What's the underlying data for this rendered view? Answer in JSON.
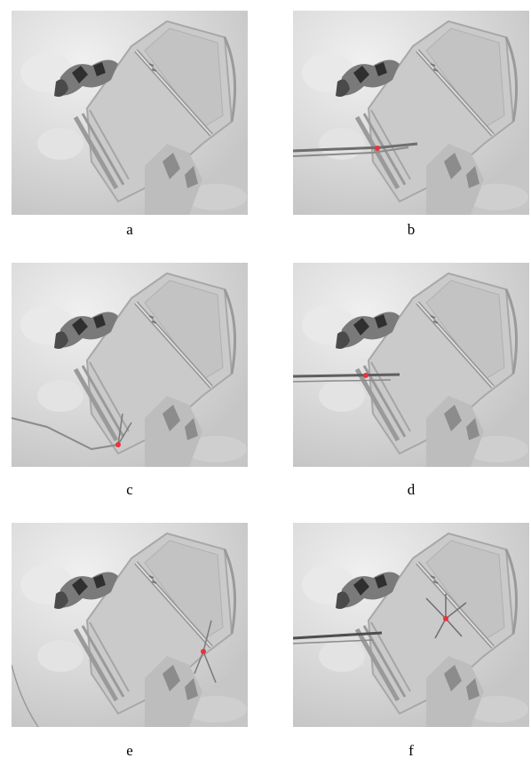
{
  "panels": [
    {
      "label": "a",
      "marker": false
    },
    {
      "label": "b",
      "marker": true
    },
    {
      "label": "c",
      "marker": true
    },
    {
      "label": "d",
      "marker": true
    },
    {
      "label": "e",
      "marker": true
    },
    {
      "label": "f",
      "marker": true
    }
  ],
  "colors": {
    "terrain": "#d9d9d9",
    "pit_floor": "#c8c8c8",
    "ridge_dark": "#3a3a3a",
    "marker": "#e8333c"
  }
}
